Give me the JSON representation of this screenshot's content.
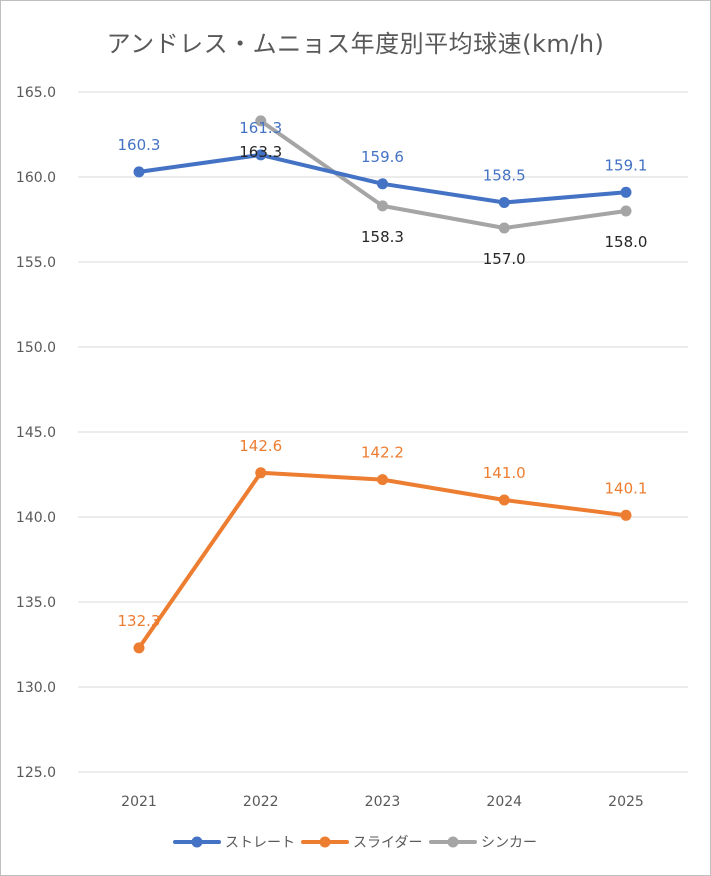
{
  "chart_data": {
    "type": "line",
    "title": "アンドレス・ムニョス年度別平均球速(km/h)",
    "categories": [
      "2021",
      "2022",
      "2023",
      "2024",
      "2025"
    ],
    "ylim": [
      125.0,
      165.0
    ],
    "yticks": [
      "125.0",
      "130.0",
      "135.0",
      "140.0",
      "145.0",
      "150.0",
      "155.0",
      "160.0",
      "165.0"
    ],
    "grid": true,
    "legend_position": "bottom",
    "series": [
      {
        "name": "ストレート",
        "color": "#4472C4",
        "label_color": "#4472C4",
        "label_position": "above",
        "values": [
          160.3,
          161.3,
          159.6,
          158.5,
          159.1
        ],
        "labels": [
          "160.3",
          "161.3",
          "159.6",
          "158.5",
          "159.1"
        ]
      },
      {
        "name": "スライダー",
        "color": "#ED7D31",
        "label_color": "#ED7D31",
        "label_position": "above",
        "values": [
          132.3,
          142.6,
          142.2,
          141.0,
          140.1
        ],
        "labels": [
          "132.3",
          "142.6",
          "142.2",
          "141.0",
          "140.1"
        ]
      },
      {
        "name": "シンカー",
        "color": "#A5A5A5",
        "label_color": "#262626",
        "label_position": "below",
        "values": [
          null,
          163.3,
          158.3,
          157.0,
          158.0
        ],
        "labels": [
          null,
          "163.3",
          "158.3",
          "157.0",
          "158.0"
        ]
      }
    ]
  }
}
